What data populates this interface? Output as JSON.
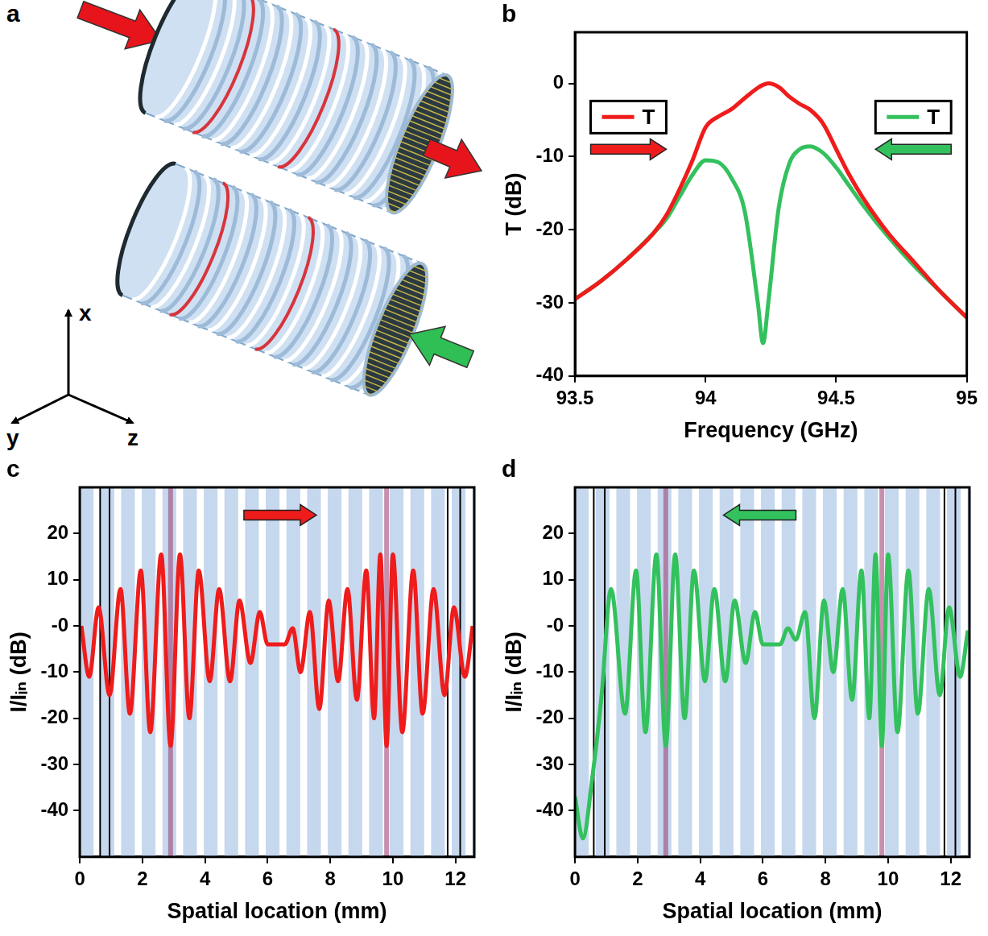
{
  "illustration": {
    "label": "a",
    "axes": [
      "x",
      "y",
      "z"
    ]
  },
  "chart_data": [
    {
      "type": "line",
      "panel": "b",
      "x_label": "Frequency (GHz)",
      "y_label": "T (dB)",
      "xlim": [
        93.5,
        95
      ],
      "xticks": [
        93.5,
        94,
        94.5,
        95
      ],
      "ylim": [
        -40,
        7
      ],
      "yticks": [
        -40,
        -30,
        -20,
        -10,
        0
      ],
      "grid": false,
      "legend": "top",
      "x": [
        93.5,
        93.6,
        93.7,
        93.8,
        93.85,
        93.9,
        93.95,
        94.0,
        94.05,
        94.1,
        94.15,
        94.2,
        94.22,
        94.24,
        94.28,
        94.32,
        94.36,
        94.4,
        94.45,
        94.5,
        94.55,
        94.6,
        94.7,
        94.8,
        94.9,
        95.0
      ],
      "series": [
        {
          "name": "T",
          "color": "#ef1c1c",
          "direction": "right",
          "values": [
            -29.5,
            -27,
            -24,
            -20.5,
            -18,
            -14.5,
            -10.5,
            -6,
            -4.5,
            -3.5,
            -2,
            -0.6,
            -0.2,
            0,
            -0.5,
            -1.8,
            -2.8,
            -3.6,
            -5.5,
            -9,
            -12.5,
            -15.5,
            -20.5,
            -24.5,
            -28.5,
            -32
          ]
        },
        {
          "name": "T",
          "color": "#33c15e",
          "direction": "left",
          "values": [
            -29.5,
            -27,
            -24,
            -20.5,
            -18.5,
            -15.5,
            -12.5,
            -10.5,
            -10.8,
            -13,
            -17.5,
            -30,
            -35.5,
            -30,
            -17,
            -11,
            -9,
            -8.6,
            -9.5,
            -11.5,
            -14,
            -16.5,
            -21,
            -25,
            -28.5,
            -32
          ]
        }
      ]
    },
    {
      "type": "line",
      "panel": "c",
      "x_label": "Spatial location (mm)",
      "y_label": "I/Iᵢₙ (dB)",
      "xlim": [
        0,
        12.6
      ],
      "xticks": [
        0,
        2,
        4,
        6,
        8,
        10,
        12
      ],
      "ylim": [
        -50,
        30
      ],
      "yticks": [
        -40,
        -30,
        -20,
        -10,
        {
          "value": 0,
          "label": "-0"
        },
        10,
        20
      ],
      "grid": false,
      "x": [
        0.05,
        0.3,
        0.6,
        0.95,
        1.3,
        1.6,
        1.95,
        2.25,
        2.6,
        2.9,
        3.2,
        3.5,
        3.8,
        4.15,
        4.45,
        4.8,
        5.1,
        5.45,
        5.75,
        6.0,
        6.55,
        6.8,
        7.05,
        7.35,
        7.65,
        7.95,
        8.25,
        8.55,
        8.85,
        9.15,
        9.4,
        9.6,
        9.8,
        10.0,
        10.3,
        10.65,
        10.95,
        11.3,
        11.65,
        11.95,
        12.3,
        12.55
      ],
      "series": [
        {
          "color": "#ef1c1c",
          "values": [
            0,
            -11,
            4,
            -15,
            8,
            -19,
            12,
            -23,
            15.5,
            -26,
            15.5,
            -20,
            12,
            -12,
            8,
            -12,
            5.5,
            -8,
            3,
            -4,
            -4,
            -0.5,
            -10,
            3,
            -18,
            5.5,
            -12,
            8,
            -16,
            12,
            -20,
            15.5,
            -26,
            15.5,
            -23,
            12,
            -19,
            8,
            -15,
            4,
            -11,
            0
          ]
        }
      ],
      "bands": [
        [
          0.0,
          0.44
        ],
        [
          0.66,
          1.1
        ],
        [
          1.32,
          1.76
        ],
        [
          1.98,
          2.42
        ],
        [
          2.64,
          3.08
        ],
        [
          3.3,
          3.74
        ],
        [
          3.96,
          4.4
        ],
        [
          4.62,
          5.06
        ],
        [
          5.28,
          5.72
        ],
        [
          5.94,
          6.38
        ],
        [
          6.6,
          7.04
        ],
        [
          7.26,
          7.7
        ],
        [
          7.92,
          8.36
        ],
        [
          8.58,
          9.02
        ],
        [
          9.24,
          9.68
        ],
        [
          9.9,
          10.34
        ],
        [
          10.56,
          11.0
        ],
        [
          11.22,
          11.66
        ],
        [
          11.88,
          12.32
        ],
        [
          12.54,
          12.6
        ]
      ],
      "boundaries": [
        0.65,
        0.95,
        11.75,
        12.15
      ],
      "highlights": [
        2.9,
        9.8
      ],
      "annotations": [
        {
          "shape": "arrow",
          "direction": "right",
          "x": 6.4,
          "y": 24
        }
      ]
    },
    {
      "type": "line",
      "panel": "d",
      "x_label": "Spatial location (mm)",
      "y_label": "I/Iᵢₙ (dB)",
      "xlim": [
        0,
        12.6
      ],
      "xticks": [
        0,
        2,
        4,
        6,
        8,
        10,
        12
      ],
      "ylim": [
        -50,
        30
      ],
      "yticks": [
        -40,
        -30,
        -20,
        -10,
        {
          "value": 0,
          "label": "-0"
        },
        10,
        20
      ],
      "grid": false,
      "x": [
        0,
        0.25,
        0.55,
        0.85,
        1.15,
        1.6,
        1.95,
        2.25,
        2.6,
        2.9,
        3.2,
        3.5,
        3.8,
        4.15,
        4.45,
        4.8,
        5.1,
        5.45,
        5.75,
        6.0,
        6.55,
        6.8,
        7.05,
        7.35,
        7.65,
        7.95,
        8.25,
        8.55,
        8.85,
        9.15,
        9.4,
        9.6,
        9.8,
        10.0,
        10.3,
        10.65,
        10.95,
        11.3,
        11.65,
        11.95,
        12.3,
        12.55
      ],
      "series": [
        {
          "color": "#33c15e",
          "values": [
            -37,
            -46,
            -33,
            -15,
            8,
            -19,
            12,
            -23,
            15.5,
            -26,
            15.5,
            -20,
            12,
            -12,
            8,
            -12,
            5.5,
            -8,
            3,
            -4,
            -4,
            -0.5,
            -3,
            3,
            -20,
            5.5,
            -10,
            8,
            -16,
            12,
            -20,
            15.5,
            -26,
            15.5,
            -23,
            12,
            -19,
            8,
            -15,
            4,
            -11,
            -1
          ]
        }
      ],
      "bands": [
        [
          0.0,
          0.44
        ],
        [
          0.66,
          1.1
        ],
        [
          1.32,
          1.76
        ],
        [
          1.98,
          2.42
        ],
        [
          2.64,
          3.08
        ],
        [
          3.3,
          3.74
        ],
        [
          3.96,
          4.4
        ],
        [
          4.62,
          5.06
        ],
        [
          5.28,
          5.72
        ],
        [
          5.94,
          6.38
        ],
        [
          6.6,
          7.04
        ],
        [
          7.26,
          7.7
        ],
        [
          7.92,
          8.36
        ],
        [
          8.58,
          9.02
        ],
        [
          9.24,
          9.68
        ],
        [
          9.9,
          10.34
        ],
        [
          10.56,
          11.0
        ],
        [
          11.22,
          11.66
        ],
        [
          11.88,
          12.32
        ],
        [
          12.54,
          12.6
        ]
      ],
      "boundaries": [
        0.6,
        0.95,
        11.8,
        12.15
      ],
      "highlights": [
        2.9,
        9.8
      ],
      "annotations": [
        {
          "shape": "arrow",
          "direction": "left",
          "x": 5.9,
          "y": 24
        }
      ]
    }
  ]
}
